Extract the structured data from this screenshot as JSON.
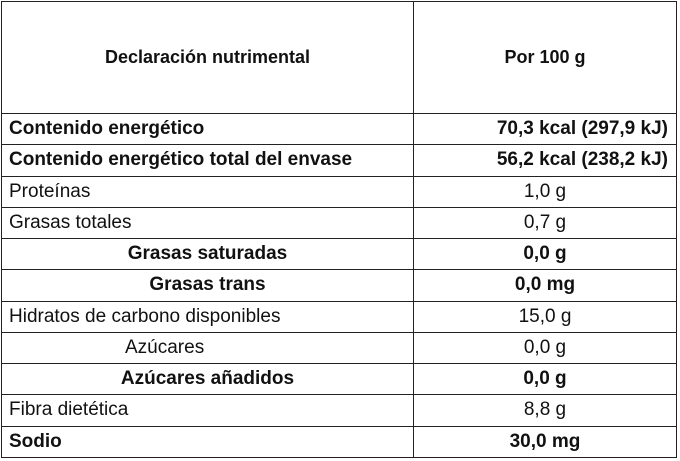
{
  "table": {
    "header": {
      "label": "Declaración nutrimental",
      "value": "Por 100 g"
    },
    "rows": [
      {
        "label": "Contenido energético",
        "value": "70,3 kcal (297,9 kJ)"
      },
      {
        "label": "Contenido energético total del envase",
        "value": "56,2 kcal (238,2 kJ)"
      },
      {
        "label": "Proteínas",
        "value": "1,0 g"
      },
      {
        "label": "Grasas totales",
        "value": "0,7 g"
      },
      {
        "label": "Grasas saturadas",
        "value": "0,0 g"
      },
      {
        "label": "Grasas trans",
        "value": "0,0 mg"
      },
      {
        "label": "Hidratos de carbono disponibles",
        "value": "15,0 g"
      },
      {
        "label": "Azúcares",
        "value": "0,0 g"
      },
      {
        "label": "Azúcares añadidos",
        "value": "0,0 g"
      },
      {
        "label": "Fibra dietética",
        "value": "8,8 g"
      },
      {
        "label": "Sodio",
        "value": "30,0 mg"
      }
    ]
  }
}
